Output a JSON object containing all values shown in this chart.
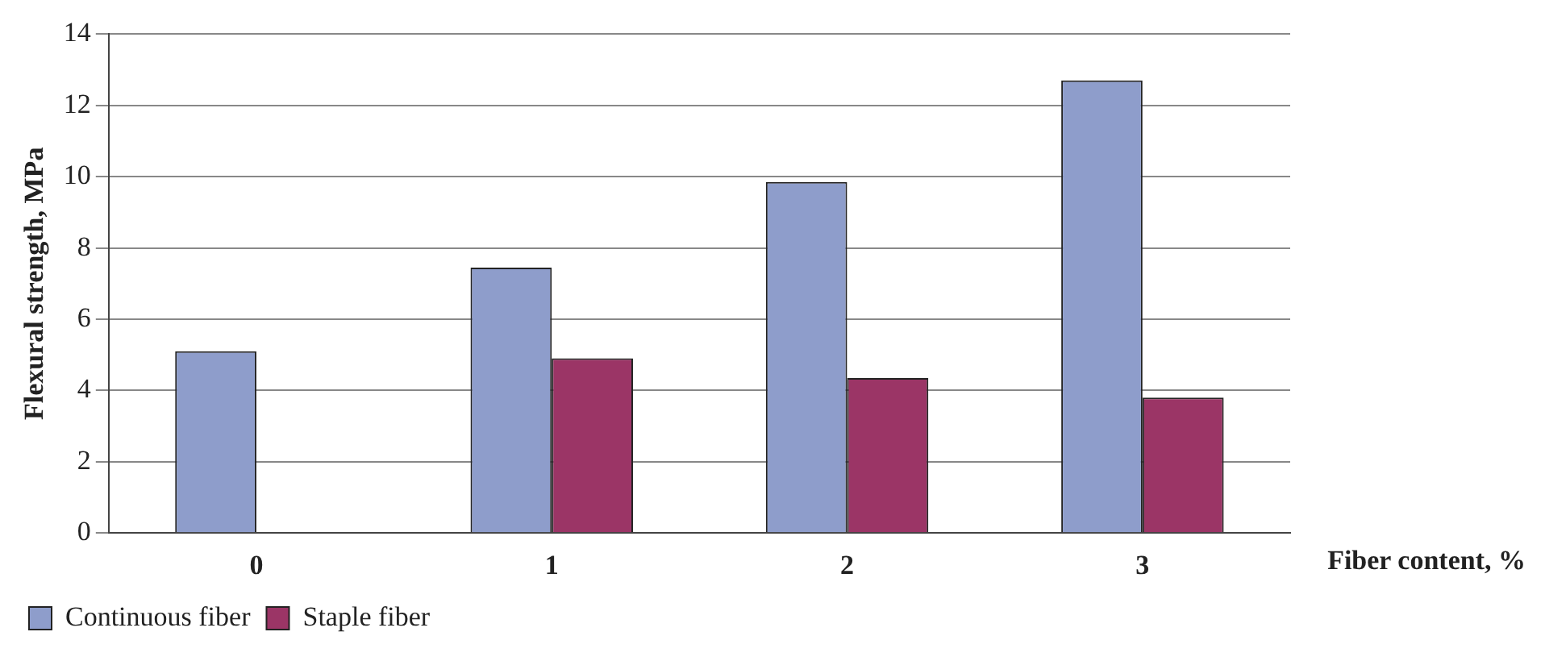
{
  "chart_data": {
    "type": "bar",
    "xlabel": "Fiber content, %",
    "ylabel": "Flexural strength, MPa",
    "categories": [
      "0",
      "1",
      "2",
      "3"
    ],
    "series": [
      {
        "name": "Continuous fiber",
        "color": "#8e9dcb",
        "values": [
          5.1,
          7.45,
          9.85,
          12.7
        ]
      },
      {
        "name": "Staple fiber",
        "color": "#9b3566",
        "values": [
          null,
          4.9,
          4.35,
          3.8
        ]
      }
    ],
    "ylim": [
      0,
      14
    ],
    "yticks": [
      0,
      2,
      4,
      6,
      8,
      10,
      12,
      14
    ],
    "grid": "y",
    "legend": "bottom"
  }
}
